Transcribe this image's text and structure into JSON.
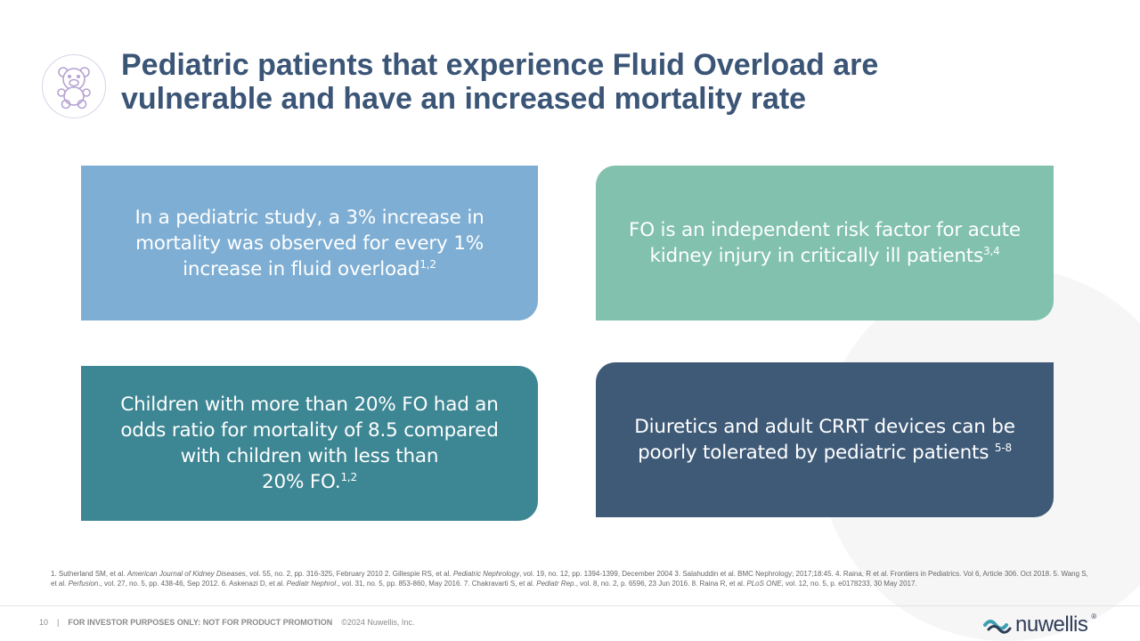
{
  "title": {
    "line1": "Pediatric patients that experience Fluid Overload are",
    "line2": "vulnerable and have an increased mortality rate"
  },
  "cards": [
    {
      "text": "In a pediatric study, a 3% increase in mortality was observed for every 1% increase in fluid overload",
      "sup": "1,2",
      "color": "#7eaed3"
    },
    {
      "text": "FO is an independent risk factor for acute kidney injury in critically ill patients",
      "sup": "3,4",
      "color": "#82c1ad"
    },
    {
      "line1": "Children with more than 20% FO had an odds ratio for mortality of 8.5 compared with children with less than",
      "line2": "20% FO.",
      "sup": "1,2",
      "color": "#3d8693"
    },
    {
      "text": "Diuretics and adult CRRT devices can be poorly tolerated by pediatric patients ",
      "sup": "5-8",
      "color": "#3e5a77"
    }
  ],
  "references": {
    "p1": "1. Sutherland SM, et al. ",
    "j1": "American Journal of Kidney Diseases",
    "p2": ", vol. 55, no. 2, pp. 316-325, February 2010 2. Gillespie RS, et al. ",
    "j2": "Pediatric Nephrology",
    "p3": ", vol. 19, no. 12, pp. 1394-1399, December 2004 3. Salahuddin et al. BMC Nephrology; 2017;18:45. 4. Raina, R et al. Frontiers in Pediatrics. Vol 6, Article 306. Oct 2018. 5. Wang S, et al. ",
    "j3": "Perfusion",
    "p4": "., vol. 27, no. 5, pp. 438-46, Sep 2012. 6. Askenazi D, et al. ",
    "j4": "Pediatr Nephrol",
    "p5": "., vol. 31, no. 5, pp. 853-860, May 2016. 7. Chakravarti S, et al. ",
    "j5": "Pediatr Rep",
    "p6": "., vol. 8, no. 2, p. 6596, 23 Jun 2016. 8. Raina R, et al. ",
    "j6": "PLoS ONE",
    "p7": ", vol. 12, no. 5, p. e0178233, 30 May 2017."
  },
  "footer": {
    "page": "10",
    "sep": "|",
    "notice": "FOR INVESTOR PURPOSES ONLY: NOT FOR PRODUCT PROMOTION",
    "copyright": "©2024 Nuwellis, Inc."
  },
  "brand": {
    "name": "nuwellis",
    "mark": "®",
    "icon": "wave-logo-icon",
    "colors": {
      "primary": "#2f3d57",
      "accent": "#3d9fb3"
    }
  },
  "decor": {
    "icon": "teddy-bear-icon"
  }
}
